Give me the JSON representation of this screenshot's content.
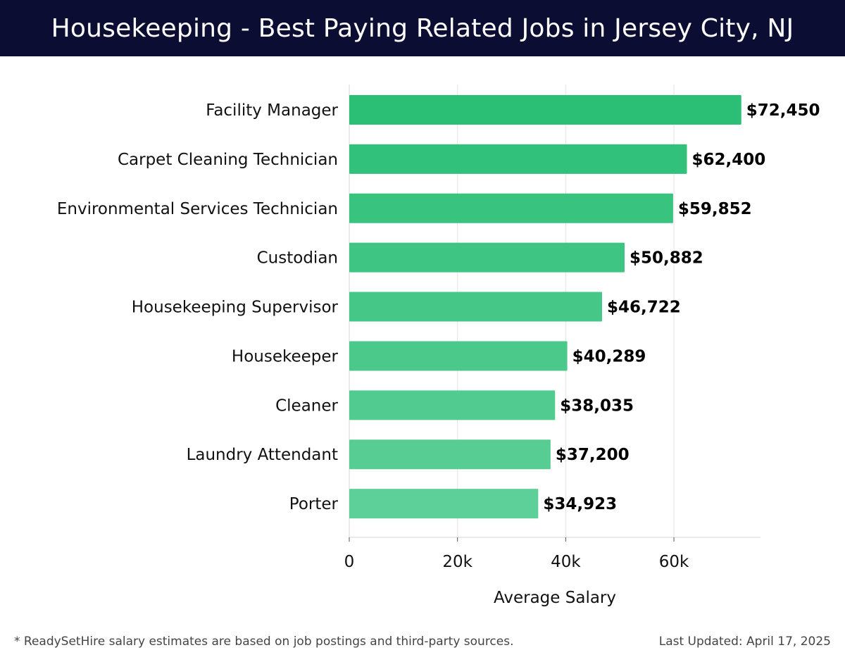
{
  "header": {
    "title": "Housekeeping - Best Paying Related Jobs in Jersey City, NJ"
  },
  "footer": {
    "note": "* ReadySetHire salary estimates are based on job postings and third-party sources.",
    "updated": "Last Updated: April 17, 2025"
  },
  "colors": {
    "header_bg": "#0b0d33",
    "bar_top": "#2bbf76",
    "bar_bottom": "#5dcf98"
  },
  "chart_data": {
    "type": "bar",
    "orientation": "horizontal",
    "categories": [
      "Facility Manager",
      "Carpet Cleaning Technician",
      "Environmental Services Technician",
      "Custodian",
      "Housekeeping Supervisor",
      "Housekeeper",
      "Cleaner",
      "Laundry Attendant",
      "Porter"
    ],
    "values": [
      72450,
      62400,
      59852,
      50882,
      46722,
      40289,
      38035,
      37200,
      34923
    ],
    "value_labels": [
      "$72,450",
      "$62,400",
      "$59,852",
      "$50,882",
      "$46,722",
      "$40,289",
      "$38,035",
      "$37,200",
      "$34,923"
    ],
    "xlabel": "Average Salary",
    "ylabel": "",
    "xlim": [
      0,
      76000
    ],
    "xticks": [
      0,
      20000,
      40000,
      60000
    ],
    "xtick_labels": [
      "0",
      "20k",
      "40k",
      "60k"
    ],
    "grid": true
  }
}
